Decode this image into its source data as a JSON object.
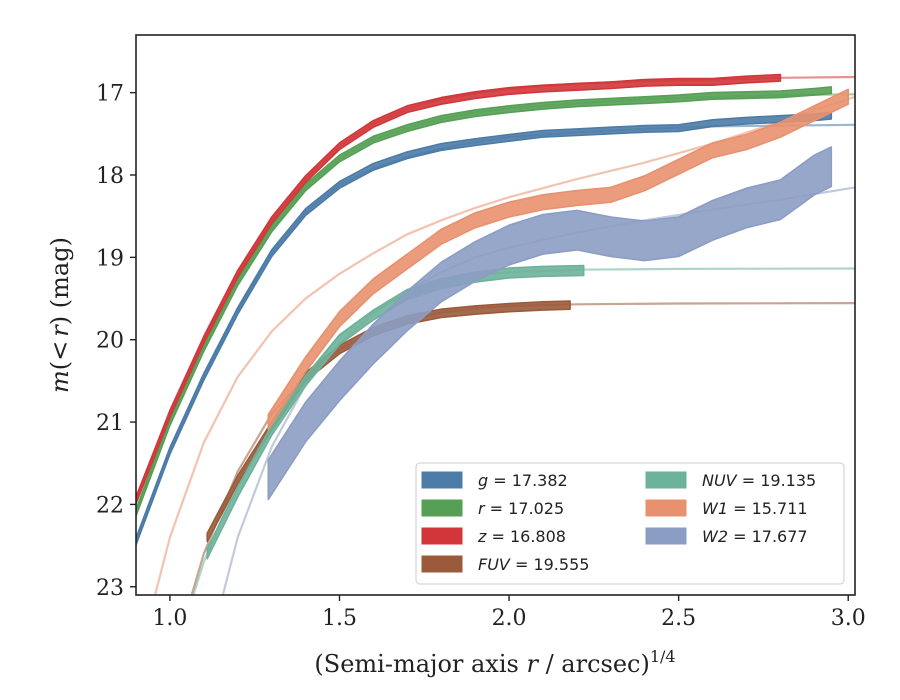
{
  "chart_data": {
    "type": "line",
    "title": "",
    "xlabel_main": "(Semi-major axis ",
    "xlabel_var": "r",
    "xlabel_unit": " / arcsec)",
    "xlabel_exp": "1/4",
    "ylabel_m": "m",
    "ylabel_open": "(",
    "ylabel_lt": "<",
    "ylabel_var": "r",
    "ylabel_close": ")",
    "ylabel_unit": " (mag)",
    "xlim": [
      0.9,
      3.02
    ],
    "ylim": [
      23.1,
      16.3
    ],
    "y_inverted": true,
    "xticks": [
      1.0,
      1.5,
      2.0,
      2.5,
      3.0
    ],
    "xtick_labels": [
      "1.0",
      "1.5",
      "2.0",
      "2.5",
      "3.0"
    ],
    "yticks": [
      17,
      18,
      19,
      20,
      21,
      22,
      23
    ],
    "ytick_labels": [
      "17",
      "18",
      "19",
      "20",
      "21",
      "22",
      "23"
    ],
    "grid": false,
    "legend_position": "bottom-right",
    "series": [
      {
        "key": "g",
        "label_var": "g",
        "label_eq": " = 17.382",
        "color": "#4c7ba7",
        "observed": [
          [
            0.9,
            22.45
          ],
          [
            1.0,
            21.35
          ],
          [
            1.1,
            20.45
          ],
          [
            1.2,
            19.65
          ],
          [
            1.3,
            18.95
          ],
          [
            1.4,
            18.45
          ],
          [
            1.5,
            18.12
          ],
          [
            1.6,
            17.9
          ],
          [
            1.7,
            17.76
          ],
          [
            1.8,
            17.66
          ],
          [
            1.9,
            17.6
          ],
          [
            2.0,
            17.55
          ],
          [
            2.1,
            17.5
          ],
          [
            2.2,
            17.48
          ],
          [
            2.3,
            17.46
          ],
          [
            2.4,
            17.44
          ],
          [
            2.5,
            17.43
          ],
          [
            2.6,
            17.37
          ],
          [
            2.7,
            17.34
          ],
          [
            2.8,
            17.32
          ],
          [
            2.9,
            17.3
          ],
          [
            2.95,
            17.28
          ]
        ],
        "model": [
          [
            0.9,
            22.45
          ],
          [
            1.0,
            21.35
          ],
          [
            1.1,
            20.45
          ],
          [
            1.2,
            19.65
          ],
          [
            1.3,
            18.95
          ],
          [
            1.4,
            18.45
          ],
          [
            1.5,
            18.12
          ],
          [
            1.6,
            17.92
          ],
          [
            1.7,
            17.78
          ],
          [
            1.8,
            17.68
          ],
          [
            1.9,
            17.6
          ],
          [
            2.0,
            17.54
          ],
          [
            2.2,
            17.48
          ],
          [
            2.4,
            17.44
          ],
          [
            2.6,
            17.41
          ],
          [
            2.8,
            17.4
          ],
          [
            3.02,
            17.39
          ]
        ],
        "band": 0.04
      },
      {
        "key": "r",
        "label_var": "r",
        "label_eq": " = 17.025",
        "color": "#55a055",
        "observed": [
          [
            0.9,
            22.1
          ],
          [
            1.0,
            21.0
          ],
          [
            1.1,
            20.1
          ],
          [
            1.2,
            19.3
          ],
          [
            1.3,
            18.65
          ],
          [
            1.4,
            18.15
          ],
          [
            1.5,
            17.8
          ],
          [
            1.6,
            17.57
          ],
          [
            1.7,
            17.43
          ],
          [
            1.8,
            17.32
          ],
          [
            1.9,
            17.25
          ],
          [
            2.0,
            17.2
          ],
          [
            2.1,
            17.16
          ],
          [
            2.2,
            17.13
          ],
          [
            2.3,
            17.11
          ],
          [
            2.4,
            17.09
          ],
          [
            2.5,
            17.07
          ],
          [
            2.6,
            17.04
          ],
          [
            2.7,
            17.03
          ],
          [
            2.8,
            17.02
          ],
          [
            2.9,
            16.99
          ],
          [
            2.95,
            16.97
          ]
        ],
        "model": [
          [
            0.9,
            22.1
          ],
          [
            1.0,
            21.0
          ],
          [
            1.1,
            20.1
          ],
          [
            1.2,
            19.3
          ],
          [
            1.3,
            18.65
          ],
          [
            1.4,
            18.15
          ],
          [
            1.5,
            17.8
          ],
          [
            1.6,
            17.57
          ],
          [
            1.7,
            17.43
          ],
          [
            1.8,
            17.32
          ],
          [
            1.9,
            17.24
          ],
          [
            2.0,
            17.19
          ],
          [
            2.2,
            17.13
          ],
          [
            2.4,
            17.08
          ],
          [
            2.6,
            17.05
          ],
          [
            2.8,
            17.03
          ],
          [
            3.02,
            17.02
          ]
        ],
        "band": 0.04
      },
      {
        "key": "z",
        "label_var": "z",
        "label_eq": " = 16.808",
        "color": "#d2363a",
        "observed": [
          [
            0.9,
            21.95
          ],
          [
            1.0,
            20.9
          ],
          [
            1.1,
            20.0
          ],
          [
            1.2,
            19.2
          ],
          [
            1.3,
            18.55
          ],
          [
            1.4,
            18.05
          ],
          [
            1.5,
            17.65
          ],
          [
            1.6,
            17.38
          ],
          [
            1.7,
            17.2
          ],
          [
            1.8,
            17.1
          ],
          [
            1.9,
            17.03
          ],
          [
            2.0,
            16.98
          ],
          [
            2.1,
            16.95
          ],
          [
            2.2,
            16.93
          ],
          [
            2.3,
            16.91
          ],
          [
            2.4,
            16.88
          ],
          [
            2.5,
            16.87
          ],
          [
            2.6,
            16.87
          ],
          [
            2.7,
            16.84
          ],
          [
            2.8,
            16.82
          ]
        ],
        "model": [
          [
            0.9,
            21.95
          ],
          [
            1.0,
            20.9
          ],
          [
            1.1,
            20.0
          ],
          [
            1.2,
            19.2
          ],
          [
            1.3,
            18.55
          ],
          [
            1.4,
            18.05
          ],
          [
            1.5,
            17.65
          ],
          [
            1.6,
            17.38
          ],
          [
            1.7,
            17.2
          ],
          [
            1.8,
            17.08
          ],
          [
            1.9,
            17.01
          ],
          [
            2.0,
            16.95
          ],
          [
            2.2,
            16.89
          ],
          [
            2.4,
            16.86
          ],
          [
            2.6,
            16.84
          ],
          [
            2.8,
            16.82
          ],
          [
            3.02,
            16.81
          ]
        ],
        "band": 0.04
      },
      {
        "key": "FUV",
        "label_var": "FUV",
        "label_eq": " = 19.555",
        "color": "#9b5b3b",
        "observed": [
          [
            1.11,
            22.4
          ],
          [
            1.2,
            21.7
          ],
          [
            1.3,
            21.05
          ],
          [
            1.4,
            20.45
          ],
          [
            1.5,
            20.12
          ],
          [
            1.6,
            19.9
          ],
          [
            1.7,
            19.76
          ],
          [
            1.8,
            19.68
          ],
          [
            1.9,
            19.64
          ],
          [
            2.0,
            19.61
          ],
          [
            2.1,
            19.59
          ],
          [
            2.18,
            19.58
          ]
        ],
        "model": [
          [
            1.0,
            24.0
          ],
          [
            1.1,
            22.6
          ],
          [
            1.2,
            21.6
          ],
          [
            1.3,
            20.9
          ],
          [
            1.4,
            20.45
          ],
          [
            1.5,
            20.12
          ],
          [
            1.6,
            19.9
          ],
          [
            1.7,
            19.76
          ],
          [
            1.8,
            19.67
          ],
          [
            1.9,
            19.62
          ],
          [
            2.0,
            19.59
          ],
          [
            2.2,
            19.57
          ],
          [
            2.5,
            19.56
          ],
          [
            3.02,
            19.555
          ]
        ],
        "band": 0.05
      },
      {
        "key": "NUV",
        "label_var": "NUV",
        "label_eq": " = 19.135",
        "color": "#6db39a",
        "observed": [
          [
            1.11,
            22.6
          ],
          [
            1.2,
            21.85
          ],
          [
            1.3,
            21.1
          ],
          [
            1.4,
            20.5
          ],
          [
            1.5,
            20.0
          ],
          [
            1.6,
            19.7
          ],
          [
            1.7,
            19.45
          ],
          [
            1.8,
            19.32
          ],
          [
            1.9,
            19.24
          ],
          [
            2.0,
            19.19
          ],
          [
            2.1,
            19.17
          ],
          [
            2.22,
            19.16
          ]
        ],
        "model": [
          [
            1.0,
            24.0
          ],
          [
            1.1,
            22.7
          ],
          [
            1.2,
            21.7
          ],
          [
            1.3,
            21.0
          ],
          [
            1.4,
            20.45
          ],
          [
            1.5,
            19.95
          ],
          [
            1.6,
            19.65
          ],
          [
            1.7,
            19.44
          ],
          [
            1.8,
            19.3
          ],
          [
            1.9,
            19.22
          ],
          [
            2.0,
            19.18
          ],
          [
            2.2,
            19.15
          ],
          [
            2.5,
            19.14
          ],
          [
            3.02,
            19.135
          ]
        ],
        "band": 0.06
      },
      {
        "key": "W1",
        "label_var": "W1",
        "label_eq": " = 15.711",
        "color": "#e8916e",
        "observed": [
          [
            1.29,
            21.0
          ],
          [
            1.4,
            20.3
          ],
          [
            1.5,
            19.75
          ],
          [
            1.6,
            19.35
          ],
          [
            1.7,
            19.05
          ],
          [
            1.8,
            18.75
          ],
          [
            1.9,
            18.55
          ],
          [
            2.0,
            18.42
          ],
          [
            2.1,
            18.33
          ],
          [
            2.2,
            18.28
          ],
          [
            2.3,
            18.24
          ],
          [
            2.4,
            18.1
          ],
          [
            2.5,
            17.9
          ],
          [
            2.6,
            17.7
          ],
          [
            2.7,
            17.6
          ],
          [
            2.8,
            17.45
          ],
          [
            2.9,
            17.25
          ],
          [
            3.0,
            17.05
          ]
        ],
        "model": [
          [
            0.9,
            24.0
          ],
          [
            1.0,
            22.4
          ],
          [
            1.1,
            21.25
          ],
          [
            1.2,
            20.45
          ],
          [
            1.3,
            19.9
          ],
          [
            1.4,
            19.5
          ],
          [
            1.5,
            19.2
          ],
          [
            1.6,
            18.95
          ],
          [
            1.7,
            18.72
          ],
          [
            1.8,
            18.55
          ],
          [
            1.9,
            18.4
          ],
          [
            2.0,
            18.27
          ],
          [
            2.2,
            18.05
          ],
          [
            2.4,
            17.85
          ],
          [
            2.6,
            17.62
          ],
          [
            2.8,
            17.35
          ],
          [
            3.02,
            17.05
          ]
        ],
        "band": 0.09
      },
      {
        "key": "W2",
        "label_var": "W2",
        "label_eq": " = 17.677",
        "color": "#8c9dc3",
        "observed": [
          [
            1.29,
            21.7
          ],
          [
            1.4,
            21.0
          ],
          [
            1.5,
            20.5
          ],
          [
            1.6,
            20.05
          ],
          [
            1.7,
            19.65
          ],
          [
            1.8,
            19.3
          ],
          [
            1.9,
            19.05
          ],
          [
            2.0,
            18.85
          ],
          [
            2.1,
            18.72
          ],
          [
            2.2,
            18.67
          ],
          [
            2.3,
            18.75
          ],
          [
            2.4,
            18.8
          ],
          [
            2.5,
            18.75
          ],
          [
            2.6,
            18.55
          ],
          [
            2.7,
            18.4
          ],
          [
            2.8,
            18.3
          ],
          [
            2.9,
            18.0
          ],
          [
            2.95,
            17.9
          ]
        ],
        "model": [
          [
            1.1,
            24.0
          ],
          [
            1.2,
            22.4
          ],
          [
            1.3,
            21.3
          ],
          [
            1.4,
            20.55
          ],
          [
            1.5,
            20.05
          ],
          [
            1.6,
            19.68
          ],
          [
            1.7,
            19.4
          ],
          [
            1.8,
            19.18
          ],
          [
            1.9,
            19.0
          ],
          [
            2.0,
            18.88
          ],
          [
            2.2,
            18.7
          ],
          [
            2.4,
            18.55
          ],
          [
            2.6,
            18.42
          ],
          [
            2.8,
            18.3
          ],
          [
            3.02,
            18.15
          ]
        ],
        "band": 0.24
      }
    ]
  }
}
